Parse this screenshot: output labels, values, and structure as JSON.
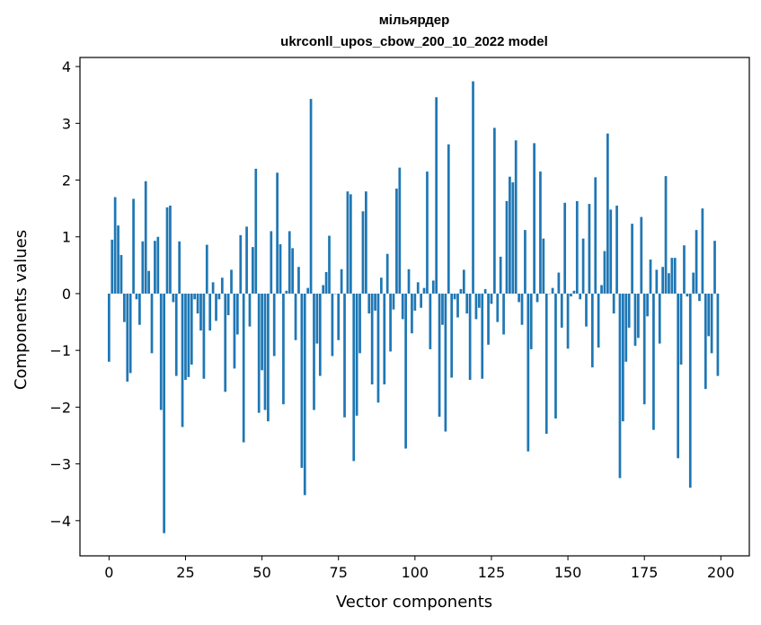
{
  "chart_data": {
    "type": "bar",
    "title_line1": "мільярдер",
    "title_line2": "ukrconll_upos_cbow_200_10_2022 model",
    "xlabel": "Vector components",
    "ylabel": "Components values",
    "xlim": [
      -9.5,
      209.3
    ],
    "ylim": [
      -4.62,
      4.16
    ],
    "xticks": [
      0,
      25,
      50,
      75,
      100,
      125,
      150,
      175,
      200
    ],
    "yticks": [
      -4,
      -3,
      -2,
      -1,
      0,
      1,
      2,
      3,
      4
    ],
    "ytick_labels": [
      "−4",
      "−3",
      "−2",
      "−1",
      "0",
      "1",
      "2",
      "3",
      "4"
    ],
    "bar_color": "#1f77b4",
    "values": [
      -1.2,
      0.95,
      1.7,
      1.2,
      0.68,
      -0.5,
      -1.55,
      -1.4,
      1.67,
      -0.1,
      -0.55,
      0.92,
      1.98,
      0.4,
      -1.05,
      0.93,
      1.0,
      -2.05,
      -4.22,
      1.52,
      1.55,
      -0.15,
      -1.45,
      0.92,
      -2.35,
      -1.52,
      -1.47,
      -1.25,
      -0.1,
      -0.35,
      -0.65,
      -1.5,
      0.86,
      -0.65,
      0.2,
      -0.48,
      -0.1,
      0.28,
      -1.73,
      -0.38,
      0.42,
      -1.32,
      -0.72,
      1.03,
      -2.62,
      1.18,
      -0.58,
      0.82,
      2.2,
      -2.1,
      -1.35,
      -2.05,
      -2.25,
      1.1,
      -1.1,
      2.13,
      0.87,
      -1.95,
      0.05,
      1.1,
      0.8,
      -0.82,
      0.47,
      -3.07,
      -3.55,
      0.1,
      3.43,
      -2.05,
      -0.88,
      -1.45,
      0.15,
      0.38,
      1.02,
      -1.1,
      0.0,
      -0.82,
      0.43,
      -2.18,
      1.8,
      1.75,
      -2.95,
      -2.15,
      -1.05,
      1.45,
      1.8,
      -0.35,
      -1.6,
      -0.3,
      -1.92,
      0.28,
      -1.6,
      0.7,
      -1.02,
      -0.28,
      1.85,
      2.22,
      -0.45,
      -2.73,
      0.43,
      -0.7,
      -0.3,
      0.2,
      -0.25,
      0.1,
      2.15,
      -0.98,
      0.23,
      3.46,
      -2.17,
      -0.55,
      -2.43,
      2.63,
      -1.48,
      -0.1,
      -0.42,
      0.08,
      0.42,
      -0.35,
      -1.52,
      3.74,
      -0.45,
      -0.25,
      -1.5,
      0.08,
      -0.9,
      -0.18,
      2.92,
      -0.5,
      0.65,
      -0.72,
      1.63,
      2.06,
      1.96,
      2.7,
      -0.15,
      -0.55,
      1.12,
      -2.78,
      -0.98,
      2.65,
      -0.15,
      2.15,
      0.97,
      -2.47,
      0.0,
      0.1,
      -2.2,
      0.37,
      -0.6,
      1.6,
      -0.97,
      -0.05,
      0.05,
      1.63,
      -0.1,
      0.97,
      -0.58,
      1.58,
      -1.3,
      2.05,
      -0.95,
      0.15,
      0.75,
      2.82,
      1.48,
      -0.35,
      1.55,
      -3.25,
      -2.25,
      -1.2,
      -0.6,
      1.23,
      -0.92,
      -0.78,
      1.35,
      -1.95,
      -0.4,
      0.6,
      -2.4,
      0.42,
      -0.88,
      0.47,
      2.07,
      0.36,
      0.63,
      0.63,
      -2.9,
      -1.25,
      0.85,
      -0.05,
      -3.42,
      0.37,
      1.12,
      -0.13,
      1.5,
      -1.68,
      -0.75,
      -1.05,
      0.93,
      -1.45
    ]
  }
}
